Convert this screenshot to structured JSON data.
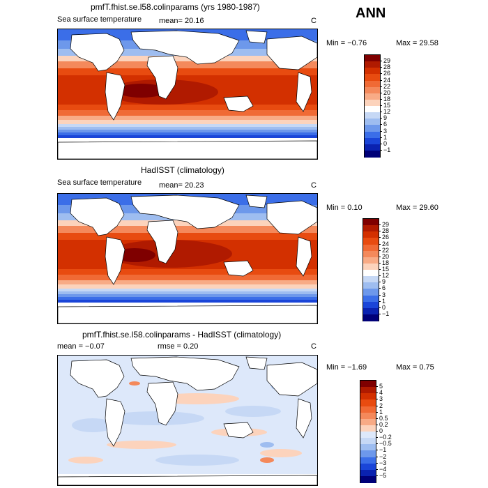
{
  "season": "ANN",
  "panels": [
    {
      "title": "pmfT.fhist.se.l58.colinparams (yrs 1980-1987)",
      "variable": "Sea surface temperature",
      "stat_text": "mean=  20.16",
      "units": "C",
      "min": "Min =  −0.76",
      "max": "Max =   29.58"
    },
    {
      "title": "HadISST (climatology)",
      "variable": "Sea surface temperature",
      "stat_text": "mean=  20.23",
      "units": "C",
      "min": "Min =   0.10",
      "max": "Max =   29.60"
    },
    {
      "title": "pmfT.fhist.se.l58.colinparams - HadISST (climatology)",
      "stat_text": "mean =   −0.07",
      "rmse_text": "rmse =    0.20",
      "units": "C",
      "min": "Min =  −1.69",
      "max": "Max =    0.75"
    }
  ],
  "colorbar_sst": {
    "labels": [
      "29",
      "28",
      "26",
      "24",
      "22",
      "20",
      "18",
      "15",
      "12",
      "9",
      "6",
      "3",
      "1",
      "0",
      "−1"
    ],
    "colors": [
      "#7f0000",
      "#b01a00",
      "#d33000",
      "#e84b10",
      "#f06a35",
      "#f4895b",
      "#f8ab86",
      "#fcd3bc",
      "#ffffff",
      "#c6d8f5",
      "#9ebdf0",
      "#6d98eb",
      "#3b6ee8",
      "#1a45d8",
      "#0a22b0",
      "#000078"
    ]
  },
  "colorbar_diff": {
    "labels": [
      "5",
      "4",
      "3",
      "2",
      "1",
      "0.5",
      "0.2",
      "0",
      "−0.2",
      "−0.5",
      "−1",
      "−2",
      "−3",
      "−4",
      "−5"
    ],
    "colors": [
      "#7f0000",
      "#b01a00",
      "#d33000",
      "#e84b10",
      "#f06a35",
      "#f4895b",
      "#f8ab86",
      "#fcd3bc",
      "#dde8fa",
      "#c6d8f5",
      "#9ebdf0",
      "#6d98eb",
      "#3b6ee8",
      "#1a45d8",
      "#0a22b0",
      "#000078"
    ]
  }
}
